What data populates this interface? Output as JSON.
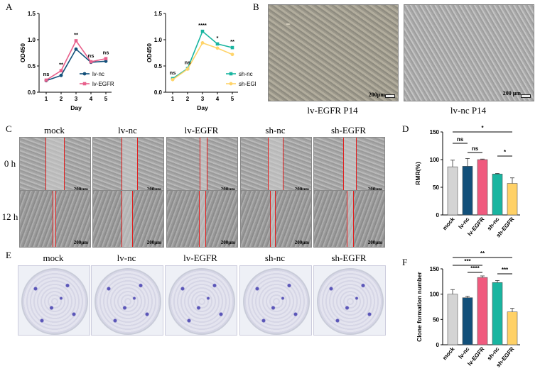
{
  "panels": {
    "A": "A",
    "B": "B",
    "C": "C",
    "D": "D",
    "E": "E",
    "F": "F"
  },
  "colors": {
    "mock": "#d4d4d4",
    "lv_nc": "#12507a",
    "lv_egfr": "#f05a7e",
    "sh_nc": "#19b5a0",
    "sh_egfr": "#ffd166",
    "lv_egfr_line": "#e8618c",
    "sh_egfr_line": "#ffd46a",
    "scratch": "#e11d1d",
    "well_stain": "#5a55b8"
  },
  "chart_data": [
    {
      "type": "line",
      "ylabel": "OD450",
      "xlabel": "Day",
      "x": [
        1,
        2,
        3,
        4,
        5
      ],
      "ylim": [
        0,
        1.5
      ],
      "yticks": [
        "0.0",
        "0.5",
        "1.0",
        "1.5"
      ],
      "series": [
        {
          "name": "lv-nc",
          "values": [
            0.22,
            0.32,
            0.82,
            0.57,
            0.59
          ]
        },
        {
          "name": "lv-EGFR",
          "values": [
            0.23,
            0.41,
            0.98,
            0.58,
            0.64
          ]
        }
      ],
      "annotations": [
        "ns",
        "**",
        "**",
        "ns",
        "ns"
      ],
      "legend_position": "center-right"
    },
    {
      "type": "line",
      "ylabel": "OD450",
      "xlabel": "Day",
      "x": [
        1,
        2,
        3,
        4,
        5
      ],
      "ylim": [
        0,
        1.5
      ],
      "yticks": [
        "0.0",
        "0.5",
        "1.0",
        "1.5"
      ],
      "series": [
        {
          "name": "sh-nc",
          "values": [
            0.26,
            0.45,
            1.16,
            0.92,
            0.85
          ]
        },
        {
          "name": "sh-EGFR",
          "values": [
            0.24,
            0.44,
            0.94,
            0.84,
            0.72
          ]
        }
      ],
      "annotations": [
        "ns",
        "ns",
        "****",
        "*",
        "**"
      ],
      "legend_position": "center-right"
    },
    {
      "type": "bar",
      "ylabel": "RMR(%)",
      "categories": [
        "mock",
        "lv-nc",
        "lv-EGFR",
        "sh-nc",
        "sh-EGFR"
      ],
      "values": [
        87,
        88,
        100,
        74,
        57
      ],
      "errors": [
        12,
        14,
        1,
        1,
        10
      ],
      "ylim": [
        0,
        150
      ],
      "yticks": [
        "0",
        "50",
        "100",
        "150"
      ],
      "brackets": [
        {
          "from": 0,
          "to": 4,
          "label": "*"
        },
        {
          "from": 0,
          "to": 1,
          "label": "ns"
        },
        {
          "from": 1,
          "to": 2,
          "label": "ns"
        },
        {
          "from": 3,
          "to": 4,
          "label": "*"
        }
      ]
    },
    {
      "type": "bar",
      "ylabel": "Clone formation number",
      "categories": [
        "mock",
        "lv-nc",
        "lv-EGFR",
        "sh-nc",
        "sh-EGFR"
      ],
      "values": [
        100,
        93,
        133,
        123,
        65
      ],
      "errors": [
        9,
        3,
        3,
        4,
        7
      ],
      "ylim": [
        0,
        150
      ],
      "yticks": [
        "0",
        "50",
        "100",
        "150"
      ],
      "brackets": [
        {
          "from": 0,
          "to": 4,
          "label": "**"
        },
        {
          "from": 0,
          "to": 2,
          "label": "***"
        },
        {
          "from": 1,
          "to": 2,
          "label": "****"
        },
        {
          "from": 3,
          "to": 4,
          "label": "***"
        }
      ]
    }
  ],
  "micrographs": {
    "b_left_caption": "lv-EGFR P14",
    "b_right_caption": "lv-nc P14",
    "b_left_scale": "200μm",
    "b_right_scale": "200 μm"
  },
  "scratch": {
    "columns": [
      "mock",
      "lv-nc",
      "lv-EGFR",
      "sh-nc",
      "sh-EGFR"
    ],
    "rows": [
      "0 h",
      "12 h"
    ],
    "scale": "200μm"
  },
  "colony": {
    "columns": [
      "mock",
      "lv-nc",
      "lv-EGFR",
      "sh-nc",
      "sh-EGFR"
    ]
  }
}
